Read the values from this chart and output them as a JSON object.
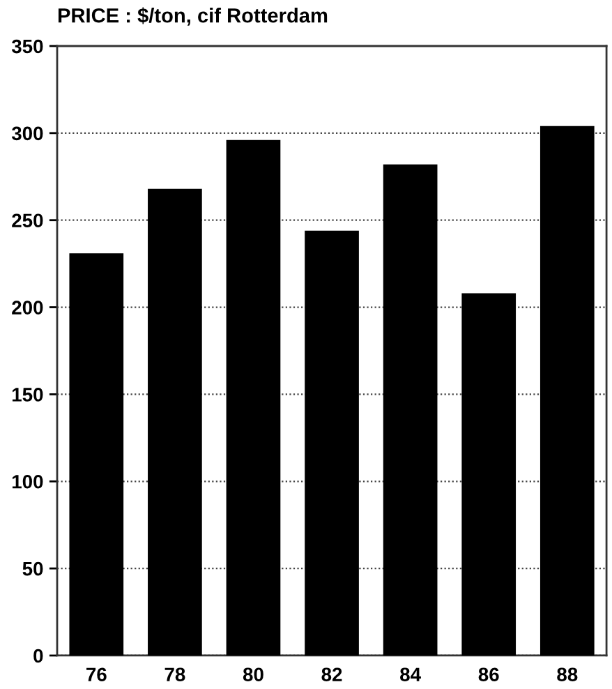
{
  "chart_data": {
    "type": "bar",
    "title": "PRICE : $/ton, cif Rotterdam",
    "categories": [
      "76",
      "78",
      "80",
      "82",
      "84",
      "86",
      "88"
    ],
    "values": [
      231,
      268,
      296,
      244,
      282,
      208,
      304
    ],
    "color": "#000000",
    "ylim": [
      0,
      350
    ],
    "yticks": [
      0,
      50,
      100,
      150,
      200,
      250,
      300,
      350
    ],
    "grid": "y",
    "legend": false
  }
}
